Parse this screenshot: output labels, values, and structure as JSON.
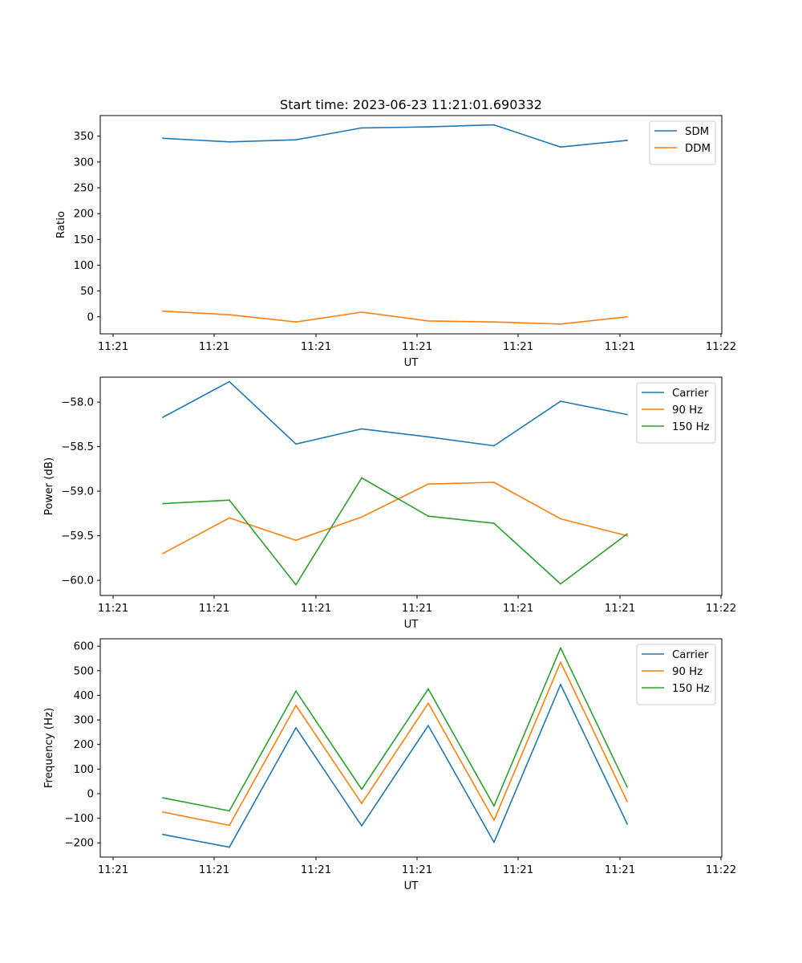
{
  "chart_data": [
    {
      "type": "line",
      "title": "Start time: 2023-06-23 11:21:01.690332",
      "xlabel": "UT",
      "ylabel": "Ratio",
      "x_ticks": [
        "11:21",
        "11:21",
        "11:21",
        "11:21",
        "11:21",
        "11:21",
        "11:22"
      ],
      "y_ticks": [
        0,
        50,
        100,
        150,
        200,
        250,
        300,
        350
      ],
      "ylim": [
        -33,
        390
      ],
      "legend": "top-right",
      "series": [
        {
          "name": "SDM",
          "color": "#1f77b4",
          "values": [
            346,
            339,
            343,
            366,
            368,
            372,
            329,
            342
          ]
        },
        {
          "name": "DDM",
          "color": "#ff7f0e",
          "values": [
            11,
            4,
            -10,
            9,
            -8,
            -10,
            -14,
            0
          ]
        }
      ]
    },
    {
      "type": "line",
      "title": "",
      "xlabel": "UT",
      "ylabel": "Power (dB)",
      "x_ticks": [
        "11:21",
        "11:21",
        "11:21",
        "11:21",
        "11:21",
        "11:21",
        "11:22"
      ],
      "y_ticks": [
        -58.0,
        -58.5,
        -59.0,
        -59.5,
        -60.0
      ],
      "ylim": [
        -60.17,
        -57.72
      ],
      "legend": "top-right",
      "series": [
        {
          "name": "Carrier",
          "color": "#1f77b4",
          "values": [
            -58.17,
            -57.77,
            -58.47,
            -58.3,
            -58.39,
            -58.49,
            -57.99,
            -58.14
          ]
        },
        {
          "name": "90 Hz",
          "color": "#ff7f0e",
          "values": [
            -59.7,
            -59.3,
            -59.55,
            -59.29,
            -58.92,
            -58.9,
            -59.31,
            -59.5
          ]
        },
        {
          "name": "150 Hz",
          "color": "#2ca02c",
          "values": [
            -59.14,
            -59.1,
            -60.05,
            -58.85,
            -59.28,
            -59.36,
            -60.04,
            -59.48
          ]
        }
      ]
    },
    {
      "type": "line",
      "title": "",
      "xlabel": "UT",
      "ylabel": "Frequency (Hz)",
      "x_ticks": [
        "11:21",
        "11:21",
        "11:21",
        "11:21",
        "11:21",
        "11:21",
        "11:22"
      ],
      "y_ticks": [
        -200,
        -100,
        0,
        100,
        200,
        300,
        400,
        500,
        600
      ],
      "ylim": [
        -258,
        630
      ],
      "legend": "top-right",
      "series": [
        {
          "name": "Carrier",
          "color": "#1f77b4",
          "values": [
            -166,
            -218,
            268,
            -131,
            277,
            -198,
            444,
            -123
          ]
        },
        {
          "name": "90 Hz",
          "color": "#ff7f0e",
          "values": [
            -75,
            -129,
            359,
            -40,
            368,
            -108,
            535,
            -32
          ]
        },
        {
          "name": "150 Hz",
          "color": "#2ca02c",
          "values": [
            -17,
            -70,
            417,
            18,
            426,
            -50,
            593,
            27
          ]
        }
      ]
    }
  ]
}
